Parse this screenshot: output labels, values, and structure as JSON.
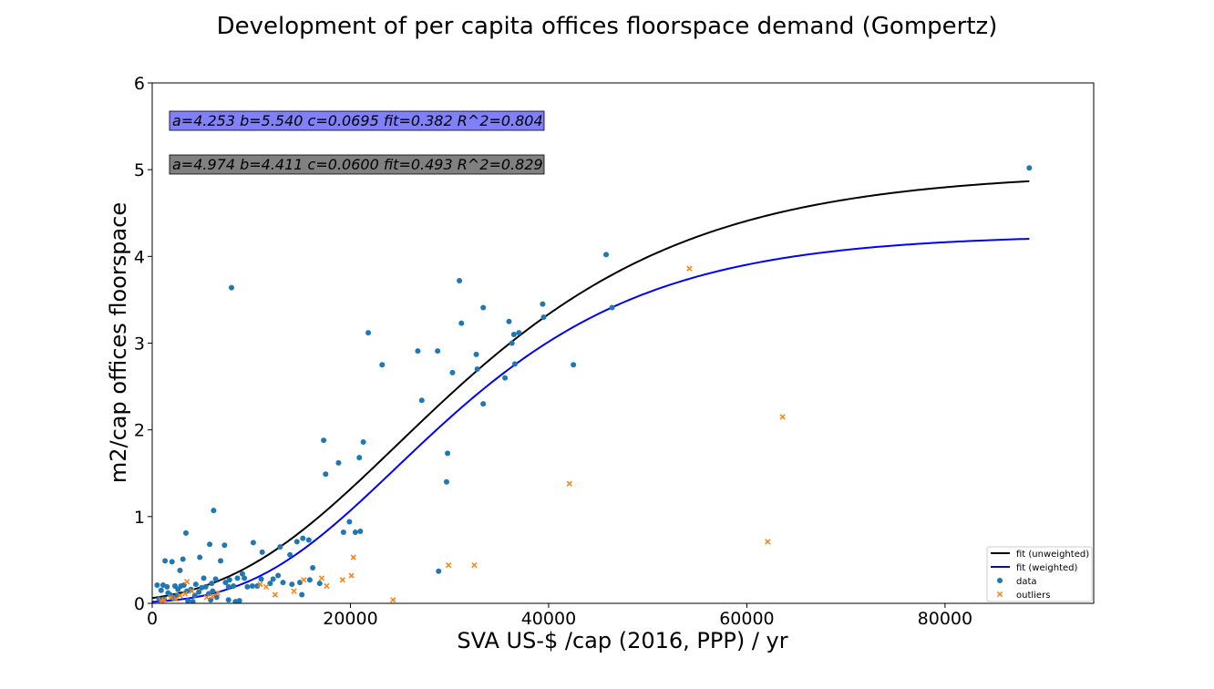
{
  "chart_data": {
    "type": "scatter",
    "title": "Development of per capita offices floorspace demand (Gompertz)",
    "xlabel": "SVA US-$ /cap (2016, PPP) / yr",
    "ylabel": "m2/cap offices floorspace",
    "xlim": [
      0,
      95000
    ],
    "ylim": [
      0,
      6
    ],
    "xticks": [
      0,
      20000,
      40000,
      60000,
      80000
    ],
    "yticks": [
      0,
      1,
      2,
      3,
      4,
      5,
      6
    ],
    "grid": false,
    "legend_position": "bottom-right",
    "annotations": [
      {
        "text": "a=4.253 b=5.540 c=0.0695 fit=0.382 R^2=0.804",
        "box_color": "#8080f8"
      },
      {
        "text": "a=4.974 b=4.411 c=0.0600 fit=0.493 R^2=0.829",
        "box_color": "#808080"
      }
    ],
    "series": [
      {
        "name": "fit (unweighted)",
        "kind": "line",
        "color": "#000000",
        "a": 4.974,
        "b": 4.411,
        "c": 0.06,
        "x_range": [
          0,
          88500
        ]
      },
      {
        "name": "fit (weighted)",
        "kind": "line",
        "color": "#0000ff",
        "a": 4.253,
        "b": 5.54,
        "c": 0.0695,
        "x_range": [
          0,
          88500
        ]
      },
      {
        "name": "data",
        "kind": "scatter",
        "marker": "circle",
        "color": "#1f77b4",
        "points": [
          [
            88500,
            5.02
          ],
          [
            45800,
            4.02
          ],
          [
            46400,
            3.41
          ],
          [
            31000,
            3.72
          ],
          [
            33400,
            3.41
          ],
          [
            39400,
            3.45
          ],
          [
            39500,
            3.3
          ],
          [
            36000,
            3.25
          ],
          [
            36300,
            3.0
          ],
          [
            36500,
            3.1
          ],
          [
            37000,
            3.12
          ],
          [
            36600,
            2.76
          ],
          [
            35600,
            2.6
          ],
          [
            42500,
            2.75
          ],
          [
            31200,
            3.23
          ],
          [
            32700,
            2.87
          ],
          [
            32800,
            2.7
          ],
          [
            33400,
            2.3
          ],
          [
            30300,
            2.66
          ],
          [
            28800,
            2.91
          ],
          [
            26800,
            2.91
          ],
          [
            27200,
            2.34
          ],
          [
            21800,
            3.12
          ],
          [
            23200,
            2.75
          ],
          [
            29800,
            1.73
          ],
          [
            29700,
            1.4
          ],
          [
            28900,
            0.37
          ],
          [
            17300,
            1.88
          ],
          [
            17500,
            1.49
          ],
          [
            18800,
            1.62
          ],
          [
            21300,
            1.86
          ],
          [
            20900,
            1.68
          ],
          [
            19900,
            0.94
          ],
          [
            20500,
            0.82
          ],
          [
            21000,
            0.83
          ],
          [
            19300,
            0.82
          ],
          [
            15200,
            0.75
          ],
          [
            15800,
            0.73
          ],
          [
            16200,
            0.41
          ],
          [
            14600,
            0.71
          ],
          [
            13900,
            0.56
          ],
          [
            12900,
            0.65
          ],
          [
            11100,
            0.59
          ],
          [
            10200,
            0.7
          ],
          [
            10600,
            0.2
          ],
          [
            8000,
            3.64
          ],
          [
            6200,
            1.07
          ],
          [
            7300,
            0.67
          ],
          [
            5800,
            0.68
          ],
          [
            6900,
            0.49
          ],
          [
            3400,
            0.81
          ],
          [
            3100,
            0.51
          ],
          [
            1300,
            0.49
          ],
          [
            2000,
            0.48
          ],
          [
            4800,
            0.53
          ],
          [
            5200,
            0.29
          ],
          [
            6000,
            0.23
          ],
          [
            6400,
            0.28
          ],
          [
            7400,
            0.24
          ],
          [
            7800,
            0.27
          ],
          [
            8600,
            0.29
          ],
          [
            9100,
            0.34
          ],
          [
            9300,
            0.29
          ],
          [
            8200,
            0.2
          ],
          [
            7700,
            0.19
          ],
          [
            9600,
            0.19
          ],
          [
            10100,
            0.2
          ],
          [
            11000,
            0.28
          ],
          [
            11900,
            0.23
          ],
          [
            12200,
            0.28
          ],
          [
            12700,
            0.32
          ],
          [
            13200,
            0.24
          ],
          [
            14100,
            0.22
          ],
          [
            14900,
            0.24
          ],
          [
            15100,
            0.1
          ],
          [
            15900,
            0.27
          ],
          [
            16900,
            0.23
          ],
          [
            500,
            0.21
          ],
          [
            900,
            0.15
          ],
          [
            1100,
            0.21
          ],
          [
            1500,
            0.19
          ],
          [
            1800,
            0.1
          ],
          [
            2300,
            0.2
          ],
          [
            2600,
            0.16
          ],
          [
            2900,
            0.2
          ],
          [
            3200,
            0.21
          ],
          [
            3500,
            0.14
          ],
          [
            3900,
            0.16
          ],
          [
            4400,
            0.22
          ],
          [
            4700,
            0.13
          ],
          [
            5000,
            0.18
          ],
          [
            5400,
            0.19
          ],
          [
            5700,
            0.11
          ],
          [
            6100,
            0.14
          ],
          [
            2800,
            0.38
          ],
          [
            3600,
            0.03
          ],
          [
            4100,
            0.02
          ],
          [
            7700,
            0.04
          ],
          [
            8400,
            0.02
          ],
          [
            8800,
            0.03
          ],
          [
            5900,
            0.04
          ],
          [
            1200,
            0.05
          ],
          [
            2100,
            0.06
          ],
          [
            2500,
            0.09
          ],
          [
            700,
            0.05
          ],
          [
            1600,
            0.12
          ],
          [
            4300,
            0.09
          ],
          [
            6500,
            0.07
          ]
        ]
      },
      {
        "name": "outliers",
        "kind": "scatter",
        "marker": "x",
        "color": "#ff7f0e",
        "points": [
          [
            54200,
            3.86
          ],
          [
            63600,
            2.15
          ],
          [
            42100,
            1.38
          ],
          [
            62100,
            0.71
          ],
          [
            29900,
            0.44
          ],
          [
            32500,
            0.44
          ],
          [
            20300,
            0.53
          ],
          [
            20100,
            0.32
          ],
          [
            19200,
            0.27
          ],
          [
            17100,
            0.29
          ],
          [
            17600,
            0.2
          ],
          [
            15300,
            0.27
          ],
          [
            14300,
            0.14
          ],
          [
            12400,
            0.1
          ],
          [
            24300,
            0.04
          ],
          [
            10900,
            0.22
          ],
          [
            11500,
            0.19
          ],
          [
            3500,
            0.25
          ],
          [
            2800,
            0.09
          ],
          [
            1900,
            0.07
          ],
          [
            3300,
            0.11
          ],
          [
            2400,
            0.05
          ],
          [
            6100,
            0.08
          ],
          [
            6600,
            0.12
          ],
          [
            1200,
            0.04
          ],
          [
            4000,
            0.14
          ],
          [
            900,
            0.03
          ],
          [
            5500,
            0.07
          ]
        ]
      }
    ]
  }
}
